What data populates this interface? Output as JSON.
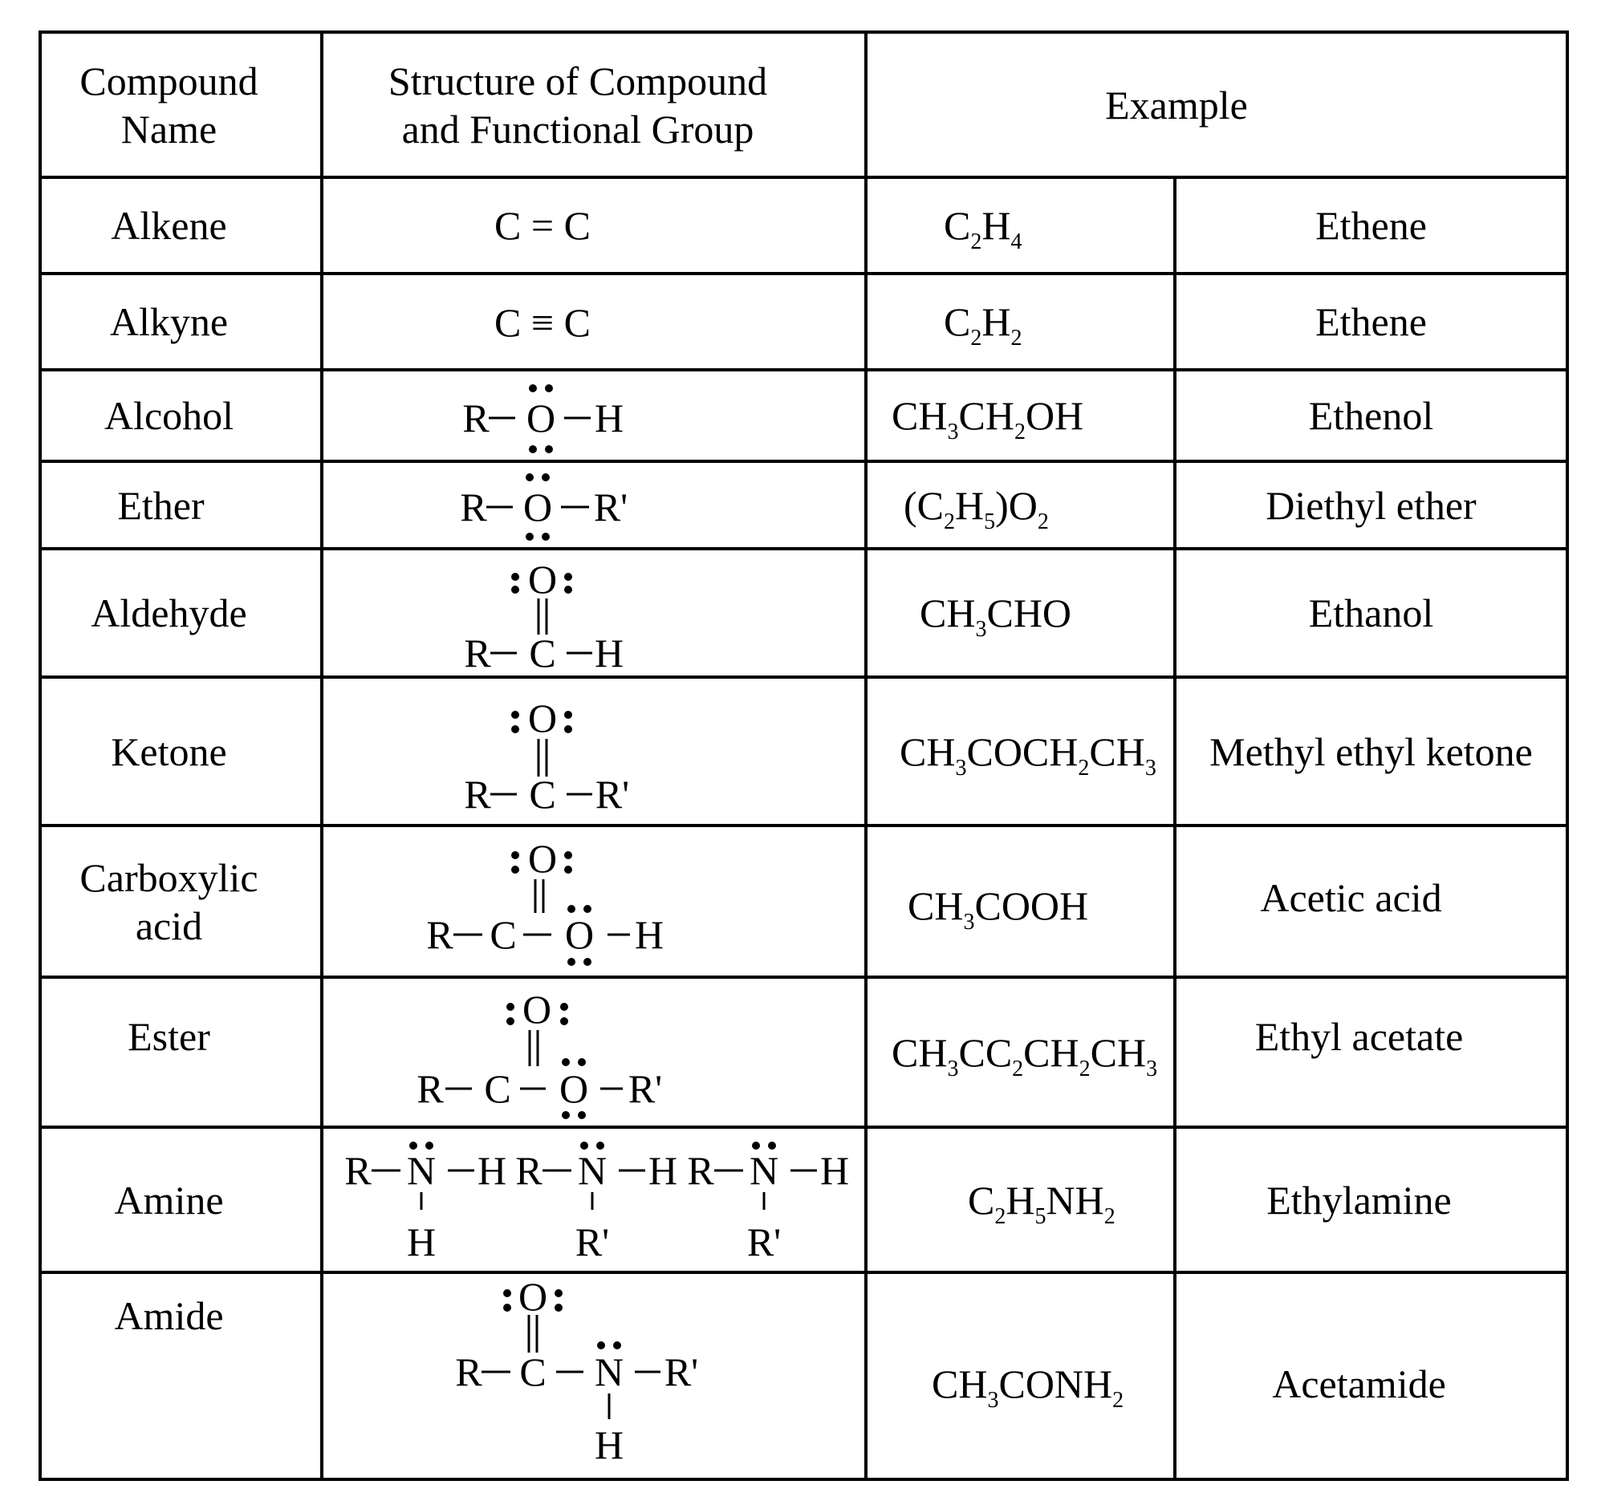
{
  "header": {
    "name": [
      "Compound",
      "Name"
    ],
    "structure": [
      "Structure of Compound",
      "and Functional Group"
    ],
    "example": "Example"
  },
  "rows": [
    {
      "name": [
        "Alkene"
      ],
      "structure": {
        "text": "C = C"
      },
      "formula": "C2H4",
      "example": "Ethene"
    },
    {
      "name": [
        "Alkyne"
      ],
      "structure": {
        "text": "C ≡ C"
      },
      "formula": "C2H2",
      "example": "Ethene"
    },
    {
      "name": [
        "Alcohol"
      ],
      "structure": {
        "left": "R",
        "center": "O",
        "right": "H"
      },
      "formula": "CH3CH2OH",
      "example": "Ethenol"
    },
    {
      "name": [
        "Ether"
      ],
      "structure": {
        "left": "R",
        "center": "O",
        "right": "R'"
      },
      "formula": "(C2H5)O2",
      "example": "Diethyl ether"
    },
    {
      "name": [
        "Aldehyde"
      ],
      "structure": {
        "top": "O",
        "left": "R",
        "center": "C",
        "right": "H"
      },
      "formula": "CH3CHO",
      "example": "Ethanol"
    },
    {
      "name": [
        "Ketone"
      ],
      "structure": {
        "top": "O",
        "left": "R",
        "center": "C",
        "right": "R'"
      },
      "formula": "CH3COCH2CH3",
      "example": "Methyl ethyl ketone"
    },
    {
      "name": [
        "Carboxylic",
        "acid"
      ],
      "structure": {
        "top": "O",
        "left": "R",
        "center": "C",
        "oxygen": "O",
        "right": "H"
      },
      "formula": "CH3COOH",
      "example": "Acetic acid"
    },
    {
      "name": [
        "Ester"
      ],
      "structure": {
        "top": "O",
        "left": "R",
        "center": "C",
        "oxygen": "O",
        "right": "R'"
      },
      "formula": "CH3CC2CH2CH3",
      "example": "Ethyl acetate"
    },
    {
      "name": [
        "Amine"
      ],
      "structure": {
        "groups": [
          {
            "left": "R",
            "center": "N",
            "right": "H",
            "bottom": "H"
          },
          {
            "left": "R",
            "center": "N",
            "right": "H",
            "bottom": "R'"
          },
          {
            "left": "R",
            "center": "N",
            "right": "H",
            "bottom": "R'"
          }
        ]
      },
      "formula": "C2H5NH2",
      "example": "Ethylamine"
    },
    {
      "name": [
        "Amide"
      ],
      "structure": {
        "top": "O",
        "left": "R",
        "center": "C",
        "nitrogen": "N",
        "right": "R'",
        "bottom": "H"
      },
      "formula": "CH3CONH2",
      "example": "Acetamide"
    }
  ]
}
